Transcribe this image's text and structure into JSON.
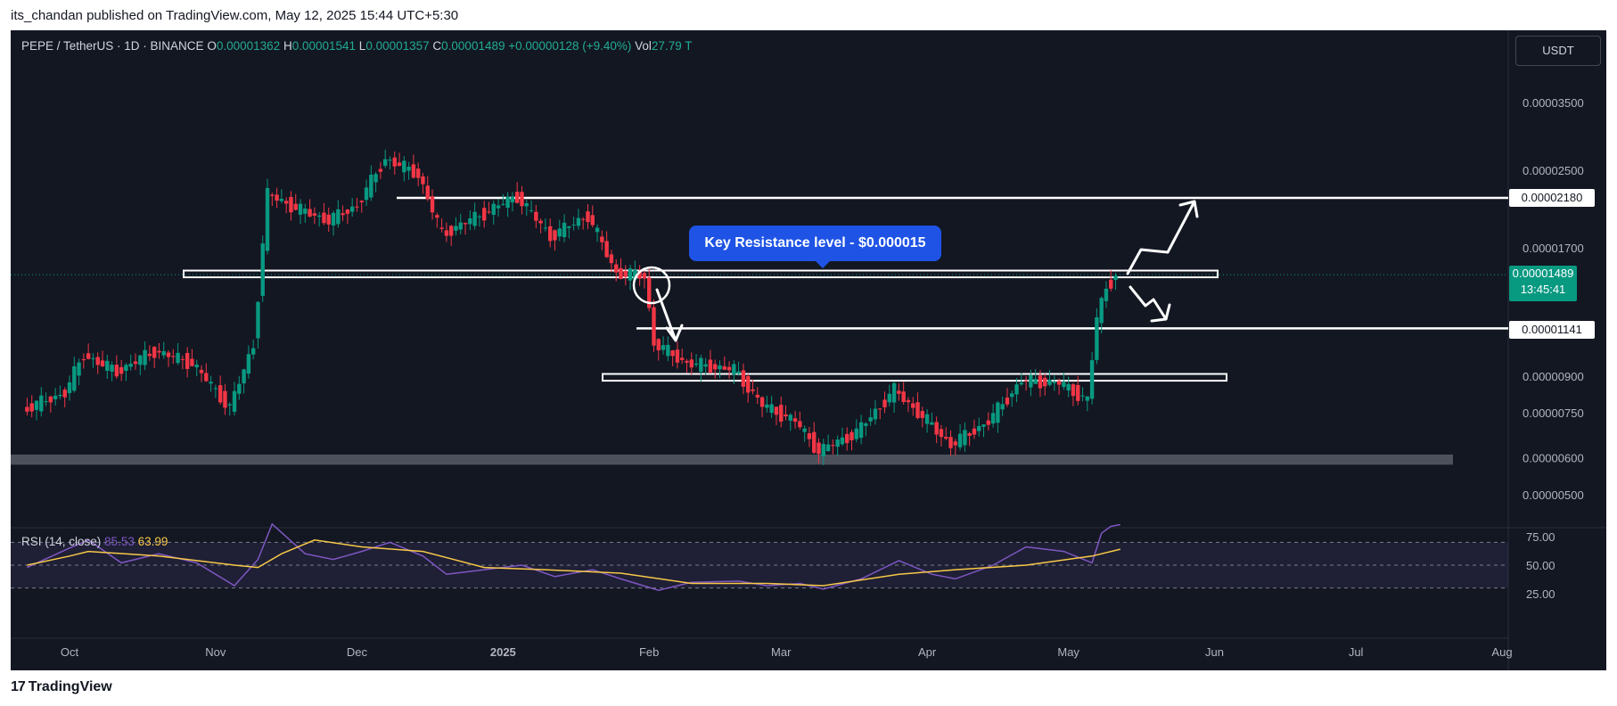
{
  "header": {
    "published": "its_chandan published on TradingView.com, May 12, 2025 15:44 UTC+5:30"
  },
  "legend": {
    "symbol": "PEPE / TetherUS · 1D · BINANCE",
    "o_label": "O",
    "o": "0.00001362",
    "h_label": "H",
    "h": "0.00001541",
    "l_label": "L",
    "l": "0.00001357",
    "c_label": "C",
    "c": "0.00001489",
    "change": "+0.00000128 (+9.40%)",
    "vol_label": "Vol",
    "vol": "27.79 T"
  },
  "currency_button": "USDT",
  "annotation": {
    "text": "Key Resistance level - $0.000015"
  },
  "price_badge": {
    "price": "0.00001489",
    "countdown": "13:45:41"
  },
  "level_badges": [
    "0.00002180",
    "0.00001141"
  ],
  "rsi_legend": {
    "label": "RSI (14, close)",
    "rsi": "85.53",
    "ma": "63.99"
  },
  "footer": {
    "logo": "TradingView"
  },
  "colors": {
    "up": "#089981",
    "down": "#f23645",
    "rsi": "#7e57c2",
    "rsi_ma": "#f7c948",
    "background": "#131722"
  },
  "chart_data": [
    {
      "type": "candlestick",
      "scale": "log",
      "ylim": [
        4.5e-06,
        4.2e-06
      ],
      "y_ticks": [
        "0.00003500",
        "0.00002500",
        "0.00002180",
        "0.00001700",
        "0.00001489",
        "0.00001141",
        "0.00000900",
        "0.00000750",
        "0.00000600",
        "0.00000500"
      ],
      "x_ticks": [
        "Oct",
        "Nov",
        "Dec",
        "2025",
        "Feb",
        "Mar",
        "Apr",
        "May",
        "Jun",
        "Jul",
        "Aug"
      ],
      "x_tick_dates": [
        "2024-10-01",
        "2024-11-01",
        "2024-12-01",
        "2025-01-01",
        "2025-02-01",
        "2025-03-01",
        "2025-04-01",
        "2025-05-01",
        "2025-06-01",
        "2025-07-01",
        "2025-08-01"
      ],
      "approx_closes": [
        {
          "date": "2024-09-22",
          "close": 7.6e-06
        },
        {
          "date": "2024-10-01",
          "close": 8.3e-06
        },
        {
          "date": "2024-10-05",
          "close": 1e-05
        },
        {
          "date": "2024-10-12",
          "close": 9.2e-06
        },
        {
          "date": "2024-10-20",
          "close": 1.02e-05
        },
        {
          "date": "2024-10-28",
          "close": 9.6e-06
        },
        {
          "date": "2024-11-05",
          "close": 7.7e-06
        },
        {
          "date": "2024-11-10",
          "close": 1.05e-05
        },
        {
          "date": "2024-11-13",
          "close": 2.22e-05
        },
        {
          "date": "2024-11-20",
          "close": 2.05e-05
        },
        {
          "date": "2024-11-26",
          "close": 1.95e-05
        },
        {
          "date": "2024-12-02",
          "close": 2.1e-05
        },
        {
          "date": "2024-12-08",
          "close": 2.65e-05
        },
        {
          "date": "2024-12-15",
          "close": 2.45e-05
        },
        {
          "date": "2024-12-20",
          "close": 1.82e-05
        },
        {
          "date": "2024-12-28",
          "close": 2e-05
        },
        {
          "date": "2025-01-05",
          "close": 2.2e-05
        },
        {
          "date": "2025-01-12",
          "close": 1.8e-05
        },
        {
          "date": "2025-01-20",
          "close": 2e-05
        },
        {
          "date": "2025-01-26",
          "close": 1.5e-05
        },
        {
          "date": "2025-02-01",
          "close": 1.48e-05
        },
        {
          "date": "2025-02-03",
          "close": 1.06e-05
        },
        {
          "date": "2025-02-10",
          "close": 9.6e-06
        },
        {
          "date": "2025-02-20",
          "close": 9.3e-06
        },
        {
          "date": "2025-02-26",
          "close": 7.8e-06
        },
        {
          "date": "2025-03-05",
          "close": 7.2e-06
        },
        {
          "date": "2025-03-10",
          "close": 6.2e-06
        },
        {
          "date": "2025-03-18",
          "close": 6.8e-06
        },
        {
          "date": "2025-03-26",
          "close": 8.4e-06
        },
        {
          "date": "2025-04-02",
          "close": 7.2e-06
        },
        {
          "date": "2025-04-07",
          "close": 6.4e-06
        },
        {
          "date": "2025-04-15",
          "close": 7.2e-06
        },
        {
          "date": "2025-04-22",
          "close": 8.8e-06
        },
        {
          "date": "2025-04-30",
          "close": 8.7e-06
        },
        {
          "date": "2025-05-06",
          "close": 8e-06
        },
        {
          "date": "2025-05-08",
          "close": 1.2e-05
        },
        {
          "date": "2025-05-10",
          "close": 1.4e-05
        },
        {
          "date": "2025-05-12",
          "close": 1.489e-05
        }
      ],
      "levels": [
        {
          "kind": "zone",
          "price": 1.5e-05
        },
        {
          "kind": "line",
          "price": 2.18e-05
        },
        {
          "kind": "line",
          "price": 1.141e-05
        },
        {
          "kind": "zone",
          "price": 9e-06
        },
        {
          "kind": "zone",
          "price": 5.8e-06
        }
      ]
    },
    {
      "type": "line",
      "title": "RSI (14, close)",
      "ylim": [
        20,
        90
      ],
      "y_ticks": [
        "75.00",
        "50.00",
        "25.00"
      ],
      "series": [
        {
          "name": "RSI",
          "points": [
            {
              "date": "2024-09-22",
              "value": 48
            },
            {
              "date": "2024-10-01",
              "value": 65
            },
            {
              "date": "2024-10-05",
              "value": 72
            },
            {
              "date": "2024-10-12",
              "value": 52
            },
            {
              "date": "2024-10-20",
              "value": 60
            },
            {
              "date": "2024-10-28",
              "value": 52
            },
            {
              "date": "2024-11-05",
              "value": 32
            },
            {
              "date": "2024-11-10",
              "value": 55
            },
            {
              "date": "2024-11-13",
              "value": 86
            },
            {
              "date": "2024-11-20",
              "value": 60
            },
            {
              "date": "2024-11-26",
              "value": 55
            },
            {
              "date": "2024-12-02",
              "value": 62
            },
            {
              "date": "2024-12-08",
              "value": 70
            },
            {
              "date": "2024-12-15",
              "value": 58
            },
            {
              "date": "2024-12-20",
              "value": 42
            },
            {
              "date": "2024-12-28",
              "value": 46
            },
            {
              "date": "2025-01-05",
              "value": 50
            },
            {
              "date": "2025-01-12",
              "value": 40
            },
            {
              "date": "2025-01-20",
              "value": 46
            },
            {
              "date": "2025-01-26",
              "value": 38
            },
            {
              "date": "2025-02-03",
              "value": 28
            },
            {
              "date": "2025-02-10",
              "value": 35
            },
            {
              "date": "2025-02-20",
              "value": 36
            },
            {
              "date": "2025-02-26",
              "value": 32
            },
            {
              "date": "2025-03-05",
              "value": 34
            },
            {
              "date": "2025-03-10",
              "value": 29
            },
            {
              "date": "2025-03-18",
              "value": 38
            },
            {
              "date": "2025-03-26",
              "value": 54
            },
            {
              "date": "2025-04-02",
              "value": 42
            },
            {
              "date": "2025-04-07",
              "value": 38
            },
            {
              "date": "2025-04-15",
              "value": 50
            },
            {
              "date": "2025-04-22",
              "value": 66
            },
            {
              "date": "2025-04-30",
              "value": 62
            },
            {
              "date": "2025-05-06",
              "value": 52
            },
            {
              "date": "2025-05-08",
              "value": 78
            },
            {
              "date": "2025-05-10",
              "value": 84
            },
            {
              "date": "2025-05-12",
              "value": 85.53
            }
          ]
        },
        {
          "name": "RSI-based MA",
          "points": [
            {
              "date": "2024-09-22",
              "value": 50
            },
            {
              "date": "2024-10-01",
              "value": 58
            },
            {
              "date": "2024-10-05",
              "value": 62
            },
            {
              "date": "2024-10-20",
              "value": 58
            },
            {
              "date": "2024-11-05",
              "value": 50
            },
            {
              "date": "2024-11-10",
              "value": 48
            },
            {
              "date": "2024-11-15",
              "value": 60
            },
            {
              "date": "2024-11-22",
              "value": 72
            },
            {
              "date": "2024-12-02",
              "value": 66
            },
            {
              "date": "2024-12-15",
              "value": 62
            },
            {
              "date": "2024-12-28",
              "value": 48
            },
            {
              "date": "2025-01-10",
              "value": 46
            },
            {
              "date": "2025-01-26",
              "value": 43
            },
            {
              "date": "2025-02-10",
              "value": 34
            },
            {
              "date": "2025-02-26",
              "value": 34
            },
            {
              "date": "2025-03-10",
              "value": 32
            },
            {
              "date": "2025-03-26",
              "value": 42
            },
            {
              "date": "2025-04-07",
              "value": 46
            },
            {
              "date": "2025-04-22",
              "value": 50
            },
            {
              "date": "2025-05-06",
              "value": 58
            },
            {
              "date": "2025-05-12",
              "value": 63.99
            }
          ]
        }
      ]
    }
  ]
}
